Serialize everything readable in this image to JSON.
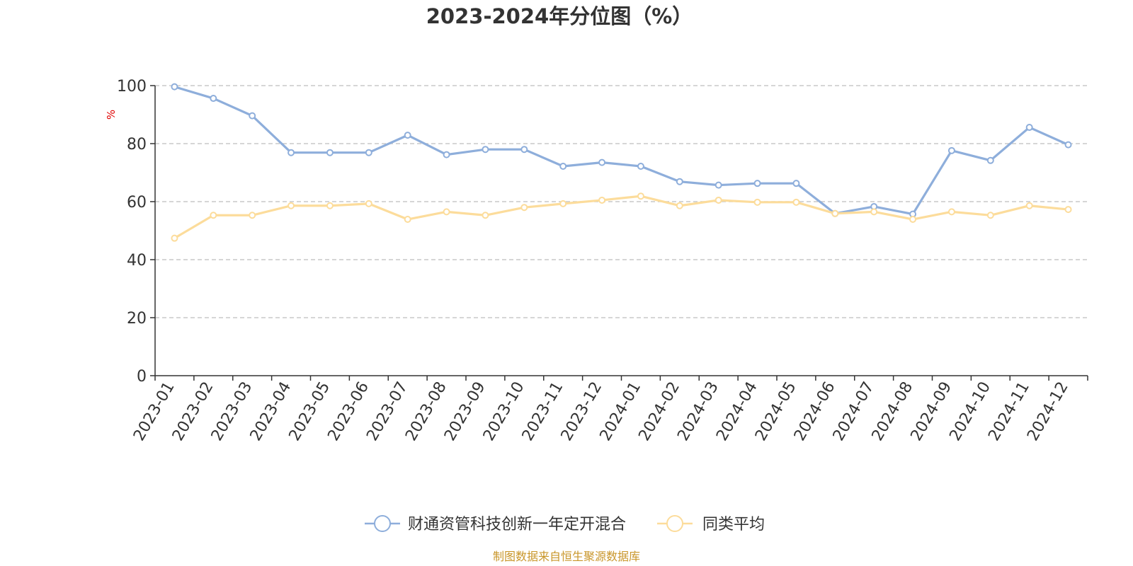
{
  "chart_data": {
    "type": "line",
    "title": "2023-2024年分位图（%）",
    "ylabel": "%",
    "xlabel": "",
    "ylim": [
      0,
      100
    ],
    "yticks": [
      0,
      20,
      40,
      60,
      80,
      100
    ],
    "grid": true,
    "legend_position": "bottom",
    "categories": [
      "2023-01",
      "2023-02",
      "2023-03",
      "2023-04",
      "2023-05",
      "2023-06",
      "2023-07",
      "2023-08",
      "2023-09",
      "2023-10",
      "2023-11",
      "2023-12",
      "2024-01",
      "2024-02",
      "2024-03",
      "2024-04",
      "2024-05",
      "2024-06",
      "2024-07",
      "2024-08",
      "2024-09",
      "2024-10",
      "2024-11",
      "2024-12"
    ],
    "series": [
      {
        "name": "财通资管科技创新一年定开混合",
        "color": "#8eaedb",
        "values": [
          99.6,
          95.6,
          89.6,
          76.9,
          76.9,
          76.9,
          82.9,
          76.2,
          78.0,
          78.0,
          72.2,
          73.5,
          72.2,
          66.9,
          65.7,
          66.3,
          66.3,
          55.9,
          58.3,
          55.7,
          77.6,
          74.2,
          85.6,
          79.6
        ]
      },
      {
        "name": "同类平均",
        "color": "#fcdc9b",
        "values": [
          47.4,
          55.3,
          55.3,
          58.6,
          58.6,
          59.3,
          53.9,
          56.5,
          55.3,
          58.0,
          59.3,
          60.5,
          61.9,
          58.6,
          60.5,
          59.8,
          59.8,
          55.9,
          56.5,
          53.9,
          56.5,
          55.3,
          58.6,
          57.3
        ]
      }
    ]
  },
  "source": {
    "text": "制图数据来自恒生聚源数据库",
    "color": "#c9962a"
  }
}
